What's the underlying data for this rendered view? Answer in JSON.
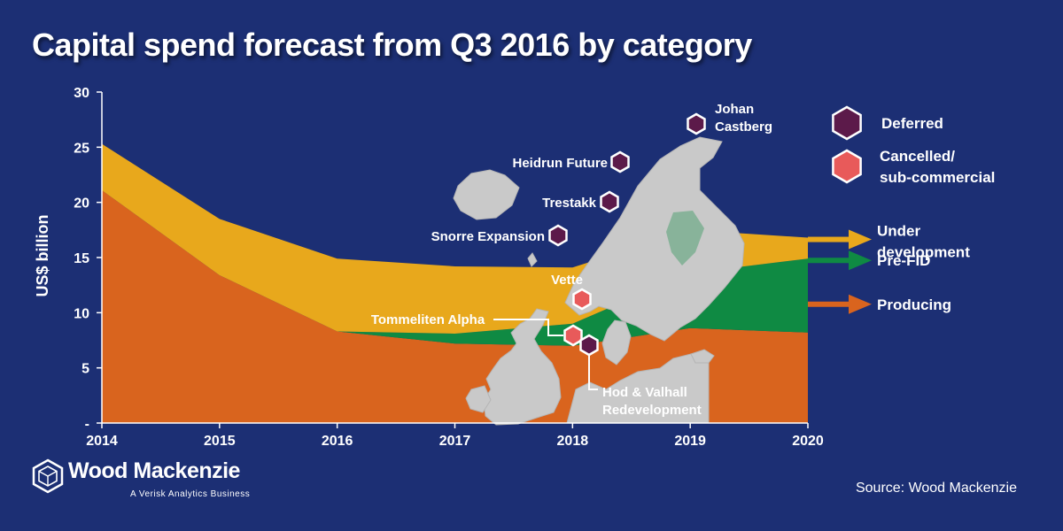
{
  "title": "Capital spend forecast from Q3 2016 by category",
  "source": "Source: Wood Mackenzie",
  "brand": {
    "name": "Wood Mackenzie",
    "tagline": "A Verisk Analytics Business",
    "icon": "hexagon-cube-logo-icon"
  },
  "colors": {
    "background": "#1c2f74",
    "producing": "#d9641e",
    "pre_fid": "#0f8a43",
    "under_development": "#e8a81c",
    "deferred": "#5c1a4a",
    "cancelled": "#e85a5a",
    "map": "#c9c9c9"
  },
  "chart_data": {
    "type": "area",
    "stacked": true,
    "title": "Capital spend forecast from Q3 2016 by category",
    "ylabel": "US$ billion",
    "xlabel": "",
    "ylim": [
      0,
      30
    ],
    "y_ticks": [
      "-",
      "5",
      "10",
      "15",
      "20",
      "25",
      "30"
    ],
    "x": [
      "2014",
      "2015",
      "2016",
      "2017",
      "2018",
      "2019",
      "2020"
    ],
    "series": [
      {
        "name": "Producing",
        "values": [
          21.1,
          13.4,
          8.3,
          7.2,
          7.0,
          8.6,
          8.2
        ]
      },
      {
        "name": "Pre-FID",
        "values": [
          0.0,
          0.0,
          0.0,
          0.9,
          2.0,
          5.0,
          6.7
        ]
      },
      {
        "name": "Under development",
        "values": [
          4.2,
          5.1,
          6.6,
          6.1,
          5.1,
          3.9,
          1.9
        ]
      }
    ],
    "series_labels": [
      "Under development",
      "Pre-FID",
      "Producing"
    ],
    "legend": {
      "position": "top-right",
      "items": [
        {
          "label": "Deferred",
          "icon": "hexagon-deferred-icon"
        },
        {
          "label": "Cancelled/ sub-commercial",
          "icon": "hexagon-cancelled-icon"
        }
      ]
    },
    "annotations": [
      {
        "label": "Johan Castberg",
        "status": "Deferred"
      },
      {
        "label": "Heidrun Future",
        "status": "Deferred"
      },
      {
        "label": "Trestakk",
        "status": "Deferred"
      },
      {
        "label": "Snorre Expansion",
        "status": "Deferred"
      },
      {
        "label": "Vette",
        "status": "Cancelled"
      },
      {
        "label": "Tommeliten Alpha",
        "status": "Cancelled"
      },
      {
        "label": "Hod & Valhall Redevelopment",
        "status": "Deferred"
      }
    ],
    "background_image": "north-sea-scandinavia-map",
    "grid": false
  }
}
